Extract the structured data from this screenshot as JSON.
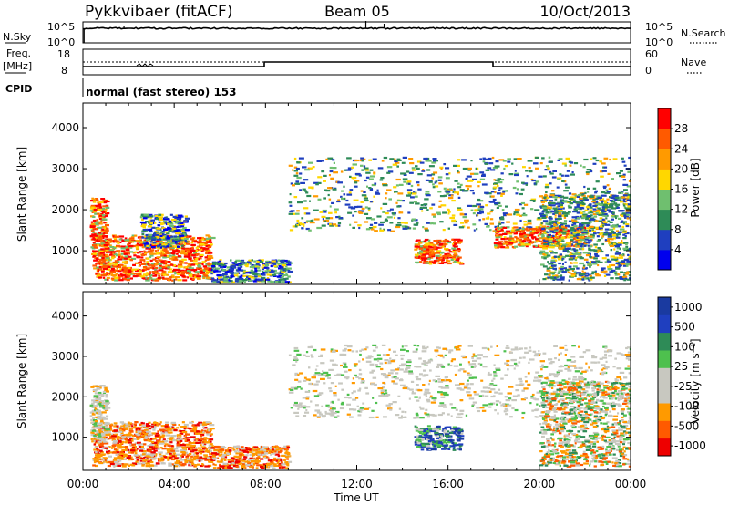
{
  "header": {
    "station": "Pykkvibaer (fitACF)",
    "beam": "Beam 05",
    "date": "10/Oct/2013"
  },
  "sky_panel": {
    "left_label": "N.Sky",
    "left_ticks": [
      "10^5",
      "10^0"
    ],
    "right_label": "N.Search",
    "right_ticks": [
      "10^5",
      "10^0"
    ]
  },
  "freq_panel": {
    "label_line1": "Freq.",
    "label_line2": "[MHz]",
    "left_ticks": [
      "18",
      "8"
    ],
    "right_label": "Nave",
    "right_ticks": [
      "60",
      "0"
    ]
  },
  "cpid": {
    "label": "CPID",
    "text": "normal (fast stereo) 153"
  },
  "colors": {
    "power_scale": [
      "#0000ee",
      "#1f3fbf",
      "#2e8b57",
      "#6fbf6f",
      "#ffd700",
      "#ff9a00",
      "#ff5a00",
      "#ff0000"
    ],
    "velocity_scale": [
      "#ee0000",
      "#ff5a00",
      "#ff9a00",
      "#c8c8c0",
      "#c8c8c0",
      "#4ec04e",
      "#2e8b57",
      "#1f3fbf",
      "#1a3aa0"
    ]
  },
  "chart_data": [
    {
      "type": "heatmap",
      "name": "power",
      "xlabel": "",
      "ylabel": "Slant Range [km]",
      "x_range_hours": [
        0,
        24
      ],
      "ylim": [
        180,
        4600
      ],
      "y_ticks": [
        1000,
        2000,
        3000,
        4000
      ],
      "colorbar": {
        "label": "Power [dB]",
        "ticks": [
          "4",
          "8",
          "12",
          "16",
          "20",
          "24",
          "28"
        ],
        "range": [
          0,
          32
        ]
      },
      "regions": [
        {
          "t0": 0.4,
          "t1": 5.6,
          "r0": 300,
          "r1": 1400,
          "level": "high"
        },
        {
          "t0": 0.3,
          "t1": 1.0,
          "r0": 900,
          "r1": 2300,
          "level": "high"
        },
        {
          "t0": 2.5,
          "t1": 4.5,
          "r0": 1100,
          "r1": 1900,
          "level": "low"
        },
        {
          "t0": 5.6,
          "t1": 9.0,
          "r0": 250,
          "r1": 800,
          "level": "low"
        },
        {
          "t0": 9.0,
          "t1": 24.0,
          "r0": 1500,
          "r1": 3300,
          "level": "medium"
        },
        {
          "t0": 14.5,
          "t1": 16.5,
          "r0": 700,
          "r1": 1300,
          "level": "high"
        },
        {
          "t0": 18.0,
          "t1": 22.0,
          "r0": 1100,
          "r1": 1600,
          "level": "high"
        },
        {
          "t0": 20.0,
          "t1": 24.0,
          "r0": 300,
          "r1": 2400,
          "level": "medium"
        }
      ]
    },
    {
      "type": "heatmap",
      "name": "velocity",
      "xlabel": "Time UT",
      "ylabel": "Slant Range [km]",
      "x_range_hours": [
        0,
        24
      ],
      "ylim": [
        180,
        4600
      ],
      "y_ticks": [
        1000,
        2000,
        3000,
        4000
      ],
      "x_ticks": [
        "00:00",
        "04:00",
        "08:00",
        "12:00",
        "16:00",
        "20:00",
        "00:00"
      ],
      "colorbar": {
        "label": "Velocity [m s⁻¹]",
        "ticks": [
          "1000",
          "500",
          "100",
          "25",
          "-25",
          "-100",
          "-500",
          "-1000"
        ]
      },
      "regions": [
        {
          "t0": 0.4,
          "t1": 5.6,
          "r0": 300,
          "r1": 1400,
          "level": "negative"
        },
        {
          "t0": 0.3,
          "t1": 1.0,
          "r0": 900,
          "r1": 2300,
          "level": "near-zero"
        },
        {
          "t0": 5.6,
          "t1": 9.0,
          "r0": 250,
          "r1": 800,
          "level": "negative"
        },
        {
          "t0": 9.0,
          "t1": 24.0,
          "r0": 1500,
          "r1": 3300,
          "level": "near-zero"
        },
        {
          "t0": 14.5,
          "t1": 16.5,
          "r0": 700,
          "r1": 1300,
          "level": "positive"
        },
        {
          "t0": 20.0,
          "t1": 24.0,
          "r0": 300,
          "r1": 2400,
          "level": "mixed"
        }
      ]
    }
  ]
}
